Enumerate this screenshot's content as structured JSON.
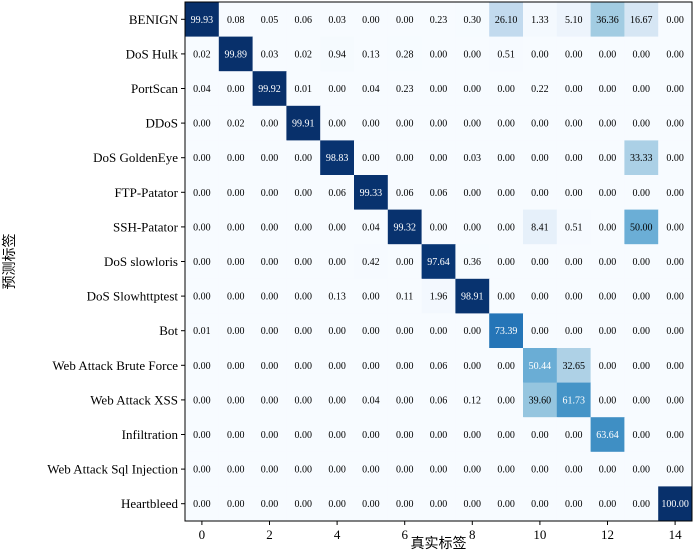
{
  "chart_data": {
    "type": "heatmap",
    "xlabel": "真实标签",
    "ylabel": "预测标签",
    "row_labels": [
      "BENIGN",
      "DoS Hulk",
      "PortScan",
      "DDoS",
      "DoS GoldenEye",
      "FTP-Patator",
      "SSH-Patator",
      "DoS slowloris",
      "DoS Slowhttptest",
      "Bot",
      "Web Attack Brute Force",
      "Web Attack XSS",
      "Infiltration",
      "Web Attack Sql  Injection",
      "Heartbleed"
    ],
    "x_ticks": [
      "0",
      "2",
      "4",
      "6",
      "8",
      "10",
      "12",
      "14"
    ],
    "x_tick_values": [
      0,
      2,
      4,
      6,
      8,
      10,
      12,
      14
    ],
    "color_range": [
      0,
      100
    ],
    "colormap": "Blues",
    "values": [
      [
        99.93,
        0.08,
        0.05,
        0.06,
        0.03,
        0.0,
        0.0,
        0.23,
        0.3,
        26.1,
        1.33,
        5.1,
        36.36,
        16.67,
        0.0
      ],
      [
        0.02,
        99.89,
        0.03,
        0.02,
        0.94,
        0.13,
        0.28,
        0.0,
        0.0,
        0.51,
        0.0,
        0.0,
        0.0,
        0.0,
        0.0
      ],
      [
        0.04,
        0.0,
        99.92,
        0.01,
        0.0,
        0.04,
        0.23,
        0.0,
        0.0,
        0.0,
        0.22,
        0.0,
        0.0,
        0.0,
        0.0
      ],
      [
        0.0,
        0.02,
        0.0,
        99.91,
        0.0,
        0.0,
        0.0,
        0.0,
        0.0,
        0.0,
        0.0,
        0.0,
        0.0,
        0.0,
        0.0
      ],
      [
        0.0,
        0.0,
        0.0,
        0.0,
        98.83,
        0.0,
        0.0,
        0.0,
        0.03,
        0.0,
        0.0,
        0.0,
        0.0,
        33.33,
        0.0
      ],
      [
        0.0,
        0.0,
        0.0,
        0.0,
        0.06,
        99.33,
        0.06,
        0.06,
        0.0,
        0.0,
        0.0,
        0.0,
        0.0,
        0.0,
        0.0
      ],
      [
        0.0,
        0.0,
        0.0,
        0.0,
        0.0,
        0.04,
        99.32,
        0.0,
        0.0,
        0.0,
        8.41,
        0.51,
        0.0,
        50.0,
        0.0
      ],
      [
        0.0,
        0.0,
        0.0,
        0.0,
        0.0,
        0.42,
        0.0,
        97.64,
        0.36,
        0.0,
        0.0,
        0.0,
        0.0,
        0.0,
        0.0
      ],
      [
        0.0,
        0.0,
        0.0,
        0.0,
        0.13,
        0.0,
        0.11,
        1.96,
        98.91,
        0.0,
        0.0,
        0.0,
        0.0,
        0.0,
        0.0
      ],
      [
        0.01,
        0.0,
        0.0,
        0.0,
        0.0,
        0.0,
        0.0,
        0.0,
        0.0,
        73.39,
        0.0,
        0.0,
        0.0,
        0.0,
        0.0
      ],
      [
        0.0,
        0.0,
        0.0,
        0.0,
        0.0,
        0.0,
        0.0,
        0.06,
        0.0,
        0.0,
        50.44,
        32.65,
        0.0,
        0.0,
        0.0
      ],
      [
        0.0,
        0.0,
        0.0,
        0.0,
        0.0,
        0.04,
        0.0,
        0.06,
        0.12,
        0.0,
        39.6,
        61.73,
        0.0,
        0.0,
        0.0
      ],
      [
        0.0,
        0.0,
        0.0,
        0.0,
        0.0,
        0.0,
        0.0,
        0.0,
        0.0,
        0.0,
        0.0,
        0.0,
        63.64,
        0.0,
        0.0
      ],
      [
        0.0,
        0.0,
        0.0,
        0.0,
        0.0,
        0.0,
        0.0,
        0.0,
        0.0,
        0.0,
        0.0,
        0.0,
        0.0,
        0.0,
        0.0
      ],
      [
        0.0,
        0.0,
        0.0,
        0.0,
        0.0,
        0.0,
        0.0,
        0.0,
        0.0,
        0.0,
        0.0,
        0.0,
        0.0,
        0.0,
        100.0
      ]
    ]
  }
}
